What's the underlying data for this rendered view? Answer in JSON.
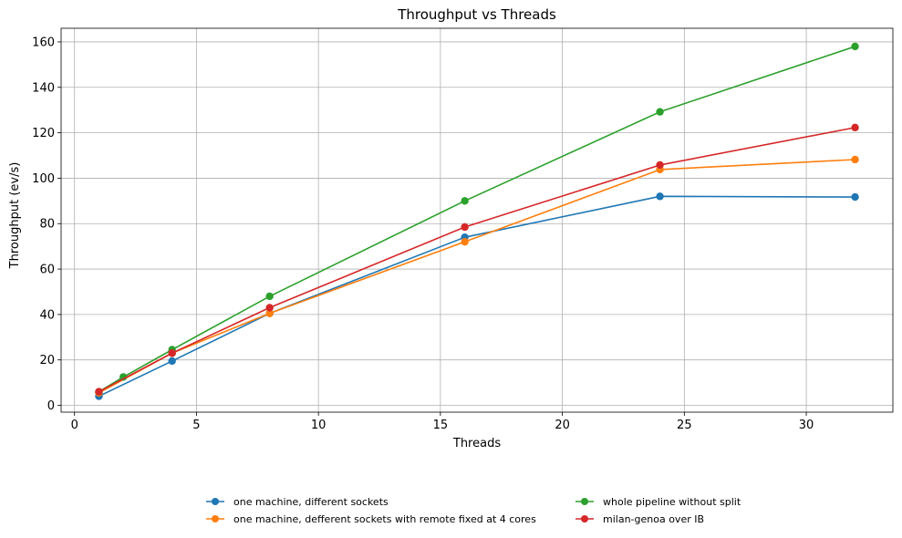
{
  "chart_data": {
    "type": "line",
    "title": "Throughput vs Threads",
    "xlabel": "Threads",
    "ylabel": "Throughput (ev/s)",
    "xlim": [
      -0.55,
      33.55
    ],
    "ylim": [
      -3,
      166
    ],
    "xticks": [
      0,
      5,
      10,
      15,
      20,
      25,
      30
    ],
    "yticks": [
      0,
      20,
      40,
      60,
      80,
      100,
      120,
      140,
      160
    ],
    "grid": true,
    "legend_position": "bottom-center",
    "series": [
      {
        "name": "one machine, different sockets",
        "color": "#1f77b4",
        "x": [
          1,
          4,
          8,
          16,
          24,
          32
        ],
        "y": [
          4.0,
          19.5,
          40.5,
          74.0,
          92.0,
          91.7
        ]
      },
      {
        "name": "one machine, defferent sockets with remote fixed at 4 cores",
        "color": "#ff7f0e",
        "x": [
          1,
          4,
          8,
          16,
          24,
          32
        ],
        "y": [
          5.5,
          23.0,
          40.5,
          72.0,
          103.8,
          108.2
        ]
      },
      {
        "name": "whole pipeline without split",
        "color": "#2ca02c",
        "x": [
          1,
          2,
          4,
          8,
          16,
          24,
          32
        ],
        "y": [
          6.0,
          12.5,
          24.5,
          48.0,
          90.0,
          129.2,
          158.0
        ]
      },
      {
        "name": "milan-genoa over IB",
        "color": "#d62728",
        "x": [
          1,
          4,
          8,
          16,
          24,
          32
        ],
        "y": [
          6.0,
          23.0,
          43.0,
          78.5,
          105.8,
          122.3
        ]
      }
    ]
  }
}
